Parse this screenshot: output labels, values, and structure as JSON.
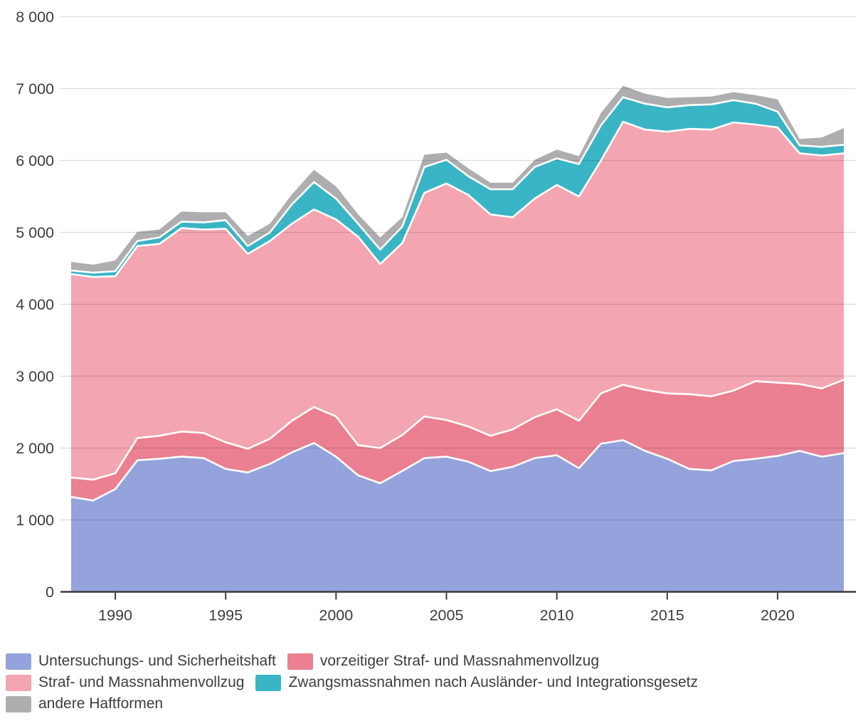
{
  "chart_data": {
    "type": "area",
    "stacked": true,
    "title": "",
    "xlabel": "",
    "ylabel": "",
    "ylim": [
      0,
      8000
    ],
    "grid": true,
    "legend_position": "bottom",
    "x": [
      1988,
      1989,
      1990,
      1991,
      1992,
      1993,
      1994,
      1995,
      1996,
      1997,
      1998,
      1999,
      2000,
      2001,
      2002,
      2003,
      2004,
      2005,
      2006,
      2007,
      2008,
      2009,
      2010,
      2011,
      2012,
      2013,
      2014,
      2015,
      2016,
      2017,
      2018,
      2019,
      2020,
      2021,
      2022,
      2023
    ],
    "x_ticks": [
      1990,
      1995,
      2000,
      2005,
      2010,
      2015,
      2020
    ],
    "x_tick_labels": [
      "1990",
      "1995",
      "2000",
      "2005",
      "2010",
      "2015",
      "2020"
    ],
    "y_ticks": [
      0,
      1000,
      2000,
      3000,
      4000,
      5000,
      6000,
      7000,
      8000
    ],
    "y_tick_labels": [
      "0",
      "1 000",
      "2 000",
      "3 000",
      "4 000",
      "5 000",
      "6 000",
      "7 000",
      "8 000"
    ],
    "colors": {
      "axis": "#3b3b3b",
      "gridline": "#d9d9d9",
      "boundary_stroke": "#ffffff",
      "tick_label": "#3c3c3c"
    },
    "series": [
      {
        "key": "untersuchungs-und-sicherheitshaft",
        "name": "Untersuchungs- und Sicherheitshaft",
        "color": "#94a3db",
        "values": [
          1320,
          1270,
          1430,
          1830,
          1850,
          1880,
          1860,
          1710,
          1660,
          1780,
          1940,
          2070,
          1880,
          1620,
          1510,
          1680,
          1860,
          1880,
          1810,
          1680,
          1740,
          1860,
          1900,
          1720,
          2060,
          2110,
          1960,
          1850,
          1710,
          1690,
          1820,
          1850,
          1890,
          1960,
          1880,
          1930
        ]
      },
      {
        "key": "vorzeitiger-straf-und-massnahmenvollzug",
        "name": "vorzeitiger Straf- und Massnahmenvollzug",
        "color": "#ea8092",
        "values": [
          270,
          290,
          220,
          310,
          320,
          350,
          350,
          370,
          330,
          350,
          440,
          500,
          560,
          420,
          490,
          500,
          580,
          510,
          490,
          490,
          520,
          570,
          640,
          660,
          700,
          770,
          850,
          910,
          1040,
          1030,
          980,
          1080,
          1020,
          930,
          950,
          1020
        ]
      },
      {
        "key": "straf-und-massnahmenvollzug",
        "name": "Straf- und Massnahmenvollzug",
        "color": "#f3a5b1",
        "values": [
          2830,
          2820,
          2740,
          2670,
          2670,
          2830,
          2830,
          2970,
          2710,
          2750,
          2740,
          2750,
          2740,
          2900,
          2560,
          2670,
          3110,
          3290,
          3220,
          3080,
          2950,
          3040,
          3120,
          3120,
          3240,
          3660,
          3620,
          3640,
          3690,
          3710,
          3730,
          3570,
          3550,
          3210,
          3240,
          3150
        ]
      },
      {
        "key": "zwangsmassnahmen-nach-auslaender-und-integrationsgesetz",
        "name": "Zwangsmassnahmen nach Ausländer- und Integrationsgesetz",
        "color": "#3ab5c6",
        "values": [
          50,
          60,
          70,
          70,
          90,
          90,
          100,
          120,
          110,
          120,
          270,
          380,
          290,
          180,
          200,
          230,
          360,
          330,
          260,
          350,
          390,
          440,
          370,
          450,
          490,
          340,
          360,
          340,
          330,
          350,
          310,
          290,
          220,
          110,
          120,
          120
        ]
      },
      {
        "key": "andere-haftformen",
        "name": "andere Haftformen",
        "color": "#aeaeb0",
        "values": [
          120,
          110,
          150,
          130,
          110,
          140,
          140,
          110,
          140,
          120,
          140,
          170,
          170,
          130,
          170,
          130,
          170,
          100,
          110,
          90,
          90,
          100,
          120,
          110,
          170,
          160,
          140,
          130,
          110,
          110,
          110,
          120,
          170,
          90,
          130,
          230
        ]
      }
    ]
  }
}
